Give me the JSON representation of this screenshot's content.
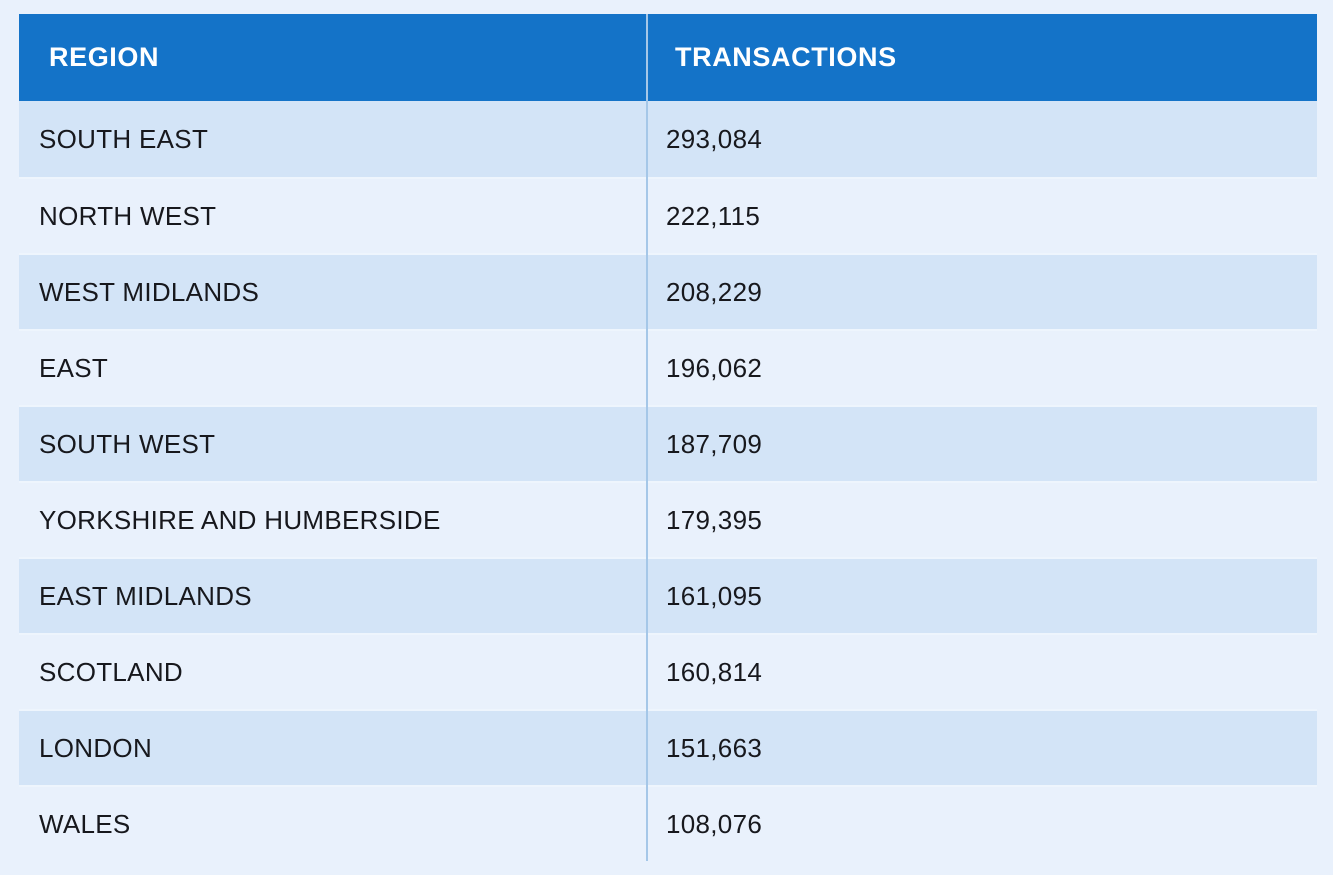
{
  "chart_data": {
    "type": "table",
    "columns": [
      "REGION",
      "TRANSACTIONS"
    ],
    "rows": [
      {
        "region": "SOUTH EAST",
        "transactions": 293084,
        "transactions_display": "293,084"
      },
      {
        "region": "NORTH WEST",
        "transactions": 222115,
        "transactions_display": "222,115"
      },
      {
        "region": "WEST MIDLANDS",
        "transactions": 208229,
        "transactions_display": "208,229"
      },
      {
        "region": "EAST",
        "transactions": 196062,
        "transactions_display": "196,062"
      },
      {
        "region": "SOUTH WEST",
        "transactions": 187709,
        "transactions_display": "187,709"
      },
      {
        "region": "YORKSHIRE AND HUMBERSIDE",
        "transactions": 179395,
        "transactions_display": "179,395"
      },
      {
        "region": "EAST MIDLANDS",
        "transactions": 161095,
        "transactions_display": "161,095"
      },
      {
        "region": "SCOTLAND",
        "transactions": 160814,
        "transactions_display": "160,814"
      },
      {
        "region": "LONDON",
        "transactions": 151663,
        "transactions_display": "151,663"
      },
      {
        "region": "WALES",
        "transactions": 108076,
        "transactions_display": "108,076"
      }
    ]
  },
  "colors": {
    "header_background": "#1473c8",
    "header_text": "#ffffff",
    "row_dark": "#d3e4f7",
    "row_light": "#e9f1fc",
    "page_background": "#e9f1fc",
    "divider": "#a5c7e8",
    "cell_text": "#17181d",
    "row_separator": "#eef5fd"
  }
}
